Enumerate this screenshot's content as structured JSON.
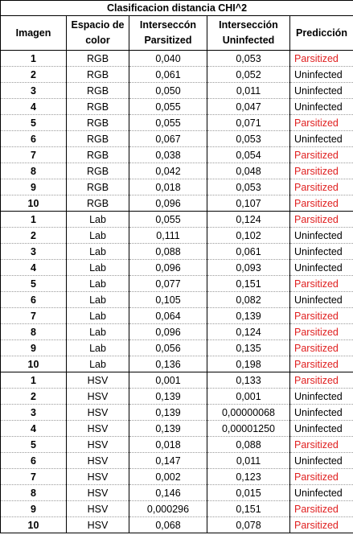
{
  "title": "Clasificacion distancia CHI^2",
  "columns": [
    "Imagen",
    "Espacio de color",
    "Interseccón Parsitized",
    "Intersección Uninfected",
    "Predicción"
  ],
  "colors": {
    "parasitized": "#e02020",
    "uninfected": "#000000"
  },
  "rows": [
    {
      "img": "1",
      "space": "RGB",
      "par": "0,040",
      "uninf": "0,053",
      "pred": "Parsitized"
    },
    {
      "img": "2",
      "space": "RGB",
      "par": "0,061",
      "uninf": "0,052",
      "pred": "Uninfected"
    },
    {
      "img": "3",
      "space": "RGB",
      "par": "0,050",
      "uninf": "0,011",
      "pred": "Uninfected"
    },
    {
      "img": "4",
      "space": "RGB",
      "par": "0,055",
      "uninf": "0,047",
      "pred": "Uninfected"
    },
    {
      "img": "5",
      "space": "RGB",
      "par": "0,055",
      "uninf": "0,071",
      "pred": "Parsitized"
    },
    {
      "img": "6",
      "space": "RGB",
      "par": "0,067",
      "uninf": "0,053",
      "pred": "Uninfected"
    },
    {
      "img": "7",
      "space": "RGB",
      "par": "0,038",
      "uninf": "0,054",
      "pred": "Parsitized"
    },
    {
      "img": "8",
      "space": "RGB",
      "par": "0,042",
      "uninf": "0,048",
      "pred": "Parsitized"
    },
    {
      "img": "9",
      "space": "RGB",
      "par": "0,018",
      "uninf": "0,053",
      "pred": "Parsitized"
    },
    {
      "img": "10",
      "space": "RGB",
      "par": "0,096",
      "uninf": "0,107",
      "pred": "Parsitized"
    },
    {
      "img": "1",
      "space": "Lab",
      "par": "0,055",
      "uninf": "0,124",
      "pred": "Parsitized"
    },
    {
      "img": "2",
      "space": "Lab",
      "par": "0,111",
      "uninf": "0,102",
      "pred": "Uninfected"
    },
    {
      "img": "3",
      "space": "Lab",
      "par": "0,088",
      "uninf": "0,061",
      "pred": "Uninfected"
    },
    {
      "img": "4",
      "space": "Lab",
      "par": "0,096",
      "uninf": "0,093",
      "pred": "Uninfected"
    },
    {
      "img": "5",
      "space": "Lab",
      "par": "0,077",
      "uninf": "0,151",
      "pred": "Parsitized"
    },
    {
      "img": "6",
      "space": "Lab",
      "par": "0,105",
      "uninf": "0,082",
      "pred": "Uninfected"
    },
    {
      "img": "7",
      "space": "Lab",
      "par": "0,064",
      "uninf": "0,139",
      "pred": "Parsitized"
    },
    {
      "img": "8",
      "space": "Lab",
      "par": "0,096",
      "uninf": "0,124",
      "pred": "Parsitized"
    },
    {
      "img": "9",
      "space": "Lab",
      "par": "0,056",
      "uninf": "0,135",
      "pred": "Parsitized"
    },
    {
      "img": "10",
      "space": "Lab",
      "par": "0,136",
      "uninf": "0,198",
      "pred": "Parsitized"
    },
    {
      "img": "1",
      "space": "HSV",
      "par": "0,001",
      "uninf": "0,133",
      "pred": "Parsitized"
    },
    {
      "img": "2",
      "space": "HSV",
      "par": "0,139",
      "uninf": "0,001",
      "pred": "Uninfected"
    },
    {
      "img": "3",
      "space": "HSV",
      "par": "0,139",
      "uninf": "0,00000068",
      "pred": "Uninfected"
    },
    {
      "img": "4",
      "space": "HSV",
      "par": "0,139",
      "uninf": "0,00001250",
      "pred": "Uninfected"
    },
    {
      "img": "5",
      "space": "HSV",
      "par": "0,018",
      "uninf": "0,088",
      "pred": "Parsitized"
    },
    {
      "img": "6",
      "space": "HSV",
      "par": "0,147",
      "uninf": "0,011",
      "pred": "Uninfected"
    },
    {
      "img": "7",
      "space": "HSV",
      "par": "0,002",
      "uninf": "0,123",
      "pred": "Parsitized"
    },
    {
      "img": "8",
      "space": "HSV",
      "par": "0,146",
      "uninf": "0,015",
      "pred": "Uninfected"
    },
    {
      "img": "9",
      "space": "HSV",
      "par": "0,000296",
      "uninf": "0,151",
      "pred": "Parsitized"
    },
    {
      "img": "10",
      "space": "HSV",
      "par": "0,068",
      "uninf": "0,078",
      "pred": "Parsitized"
    }
  ]
}
